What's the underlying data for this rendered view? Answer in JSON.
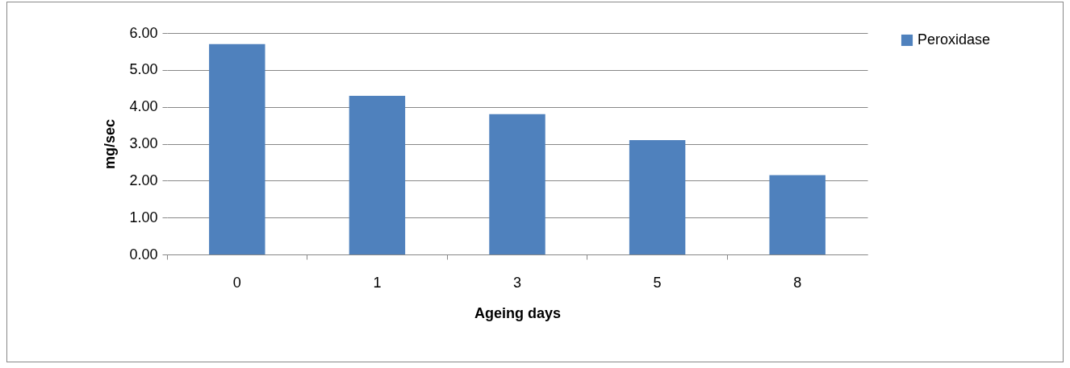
{
  "chart_data": {
    "type": "bar",
    "xlabel": "Ageing days",
    "ylabel": "mg/sec",
    "categories": [
      "0",
      "1",
      "3",
      "5",
      "8"
    ],
    "series": [
      {
        "name": "Peroxidase",
        "color": "#4f81bd",
        "values": [
          5.7,
          4.3,
          3.8,
          3.1,
          2.15
        ]
      }
    ],
    "ylim": [
      0,
      6
    ],
    "yticks": [
      {
        "value": 0,
        "label": "0.00"
      },
      {
        "value": 1,
        "label": "1.00"
      },
      {
        "value": 2,
        "label": "2.00"
      },
      {
        "value": 3,
        "label": "3.00"
      },
      {
        "value": 4,
        "label": "4.00"
      },
      {
        "value": 5,
        "label": "5.00"
      },
      {
        "value": 6,
        "label": "6.00"
      }
    ],
    "grid": "y",
    "legend": "right"
  }
}
